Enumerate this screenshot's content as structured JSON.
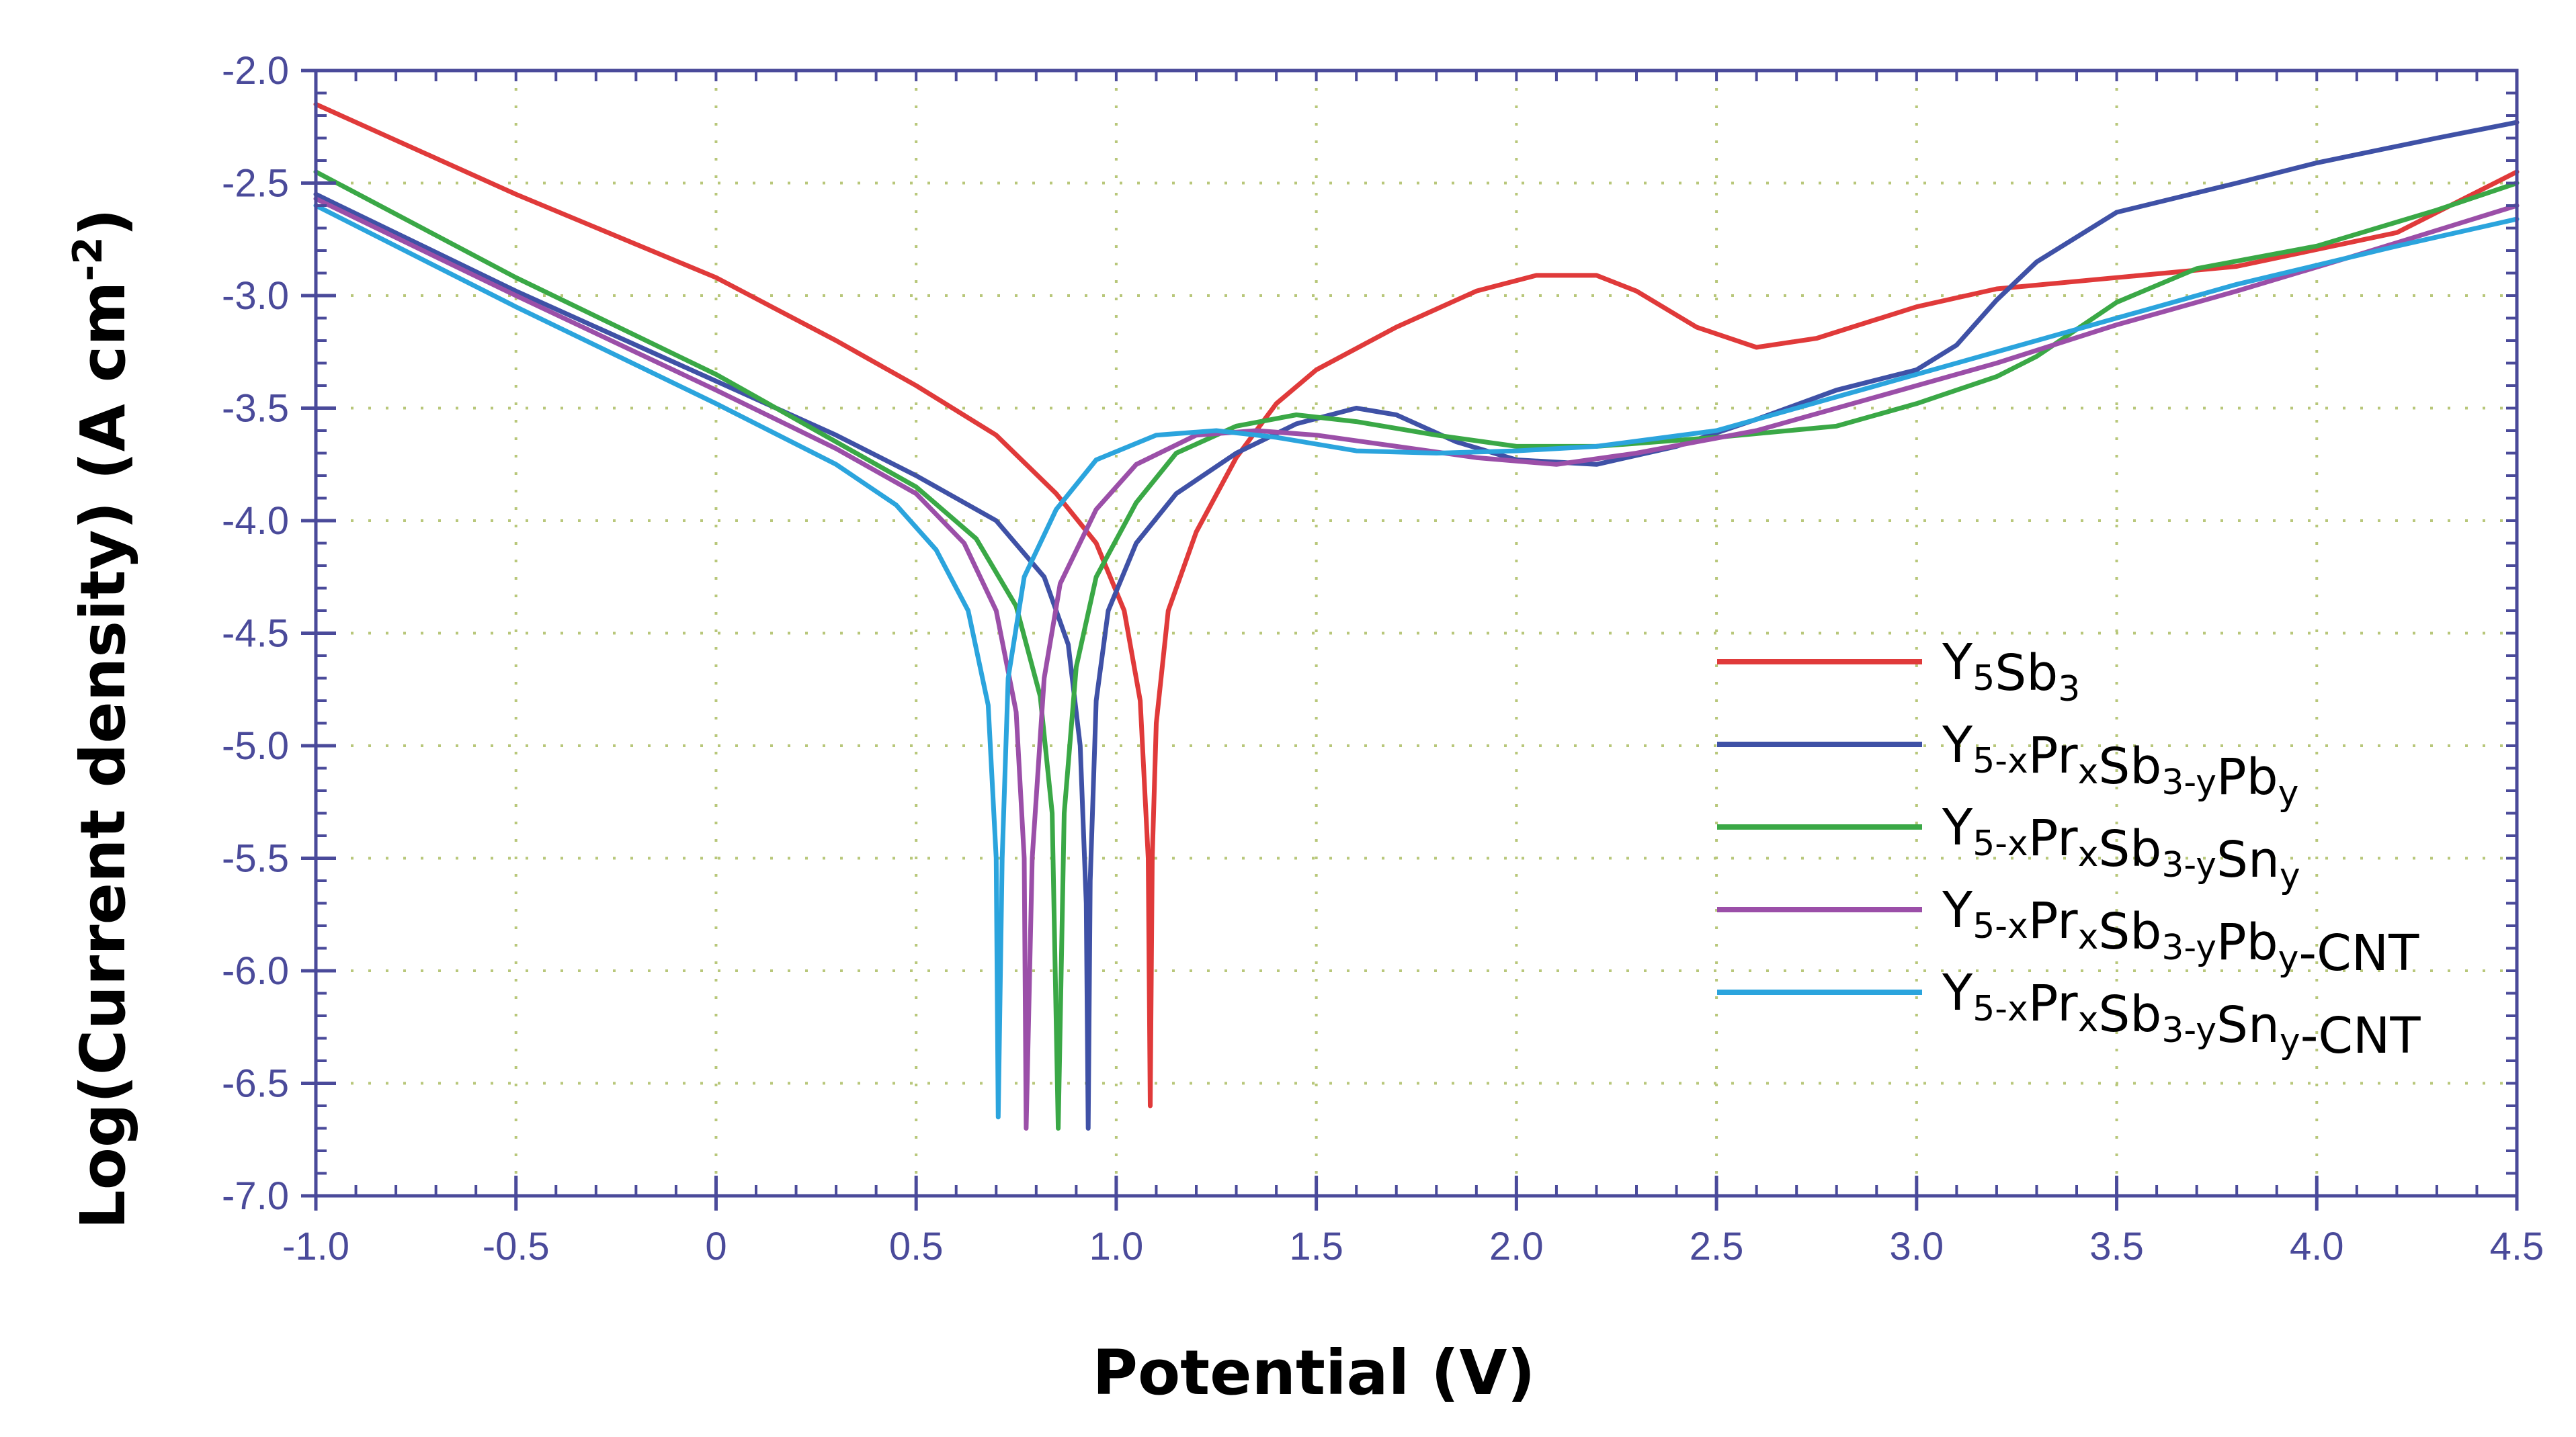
{
  "chart_data": {
    "type": "line",
    "title": "",
    "xlabel": "Potential (V)",
    "ylabel": "Log(Current density) (A cm",
    "ylabel_unit_sup": "-2",
    "ylabel_tail": ")",
    "xlim": [
      -1.0,
      4.5
    ],
    "ylim": [
      -7.0,
      -2.0
    ],
    "x_ticks": [
      -1.0,
      -0.5,
      0,
      0.5,
      1.0,
      1.5,
      2.0,
      2.5,
      3.0,
      3.5,
      4.0,
      4.5
    ],
    "x_tick_labels": [
      "-1.0",
      "-0.5",
      "0",
      "0.5",
      "1.0",
      "1.5",
      "2.0",
      "2.5",
      "3.0",
      "3.5",
      "4.0",
      "4.5"
    ],
    "y_ticks": [
      -2.0,
      -2.5,
      -3.0,
      -3.5,
      -4.0,
      -4.5,
      -5.0,
      -5.5,
      -6.0,
      -6.5,
      -7.0
    ],
    "y_tick_labels": [
      "-2.0",
      "-2.5",
      "-3.0",
      "-3.5",
      "-4.0",
      "-4.5",
      "-5.0",
      "-5.5",
      "-6.0",
      "-6.5",
      "-7.0"
    ],
    "grid": true,
    "legend_position": "center-right",
    "series": [
      {
        "name": "Y5Sb3",
        "legend": [
          {
            "t": "Y"
          },
          {
            "t": "5",
            "s": "sub"
          },
          {
            "t": "Sb"
          },
          {
            "t": "3",
            "s": "sub"
          }
        ],
        "color": "#e03a3a",
        "points": [
          [
            -1.0,
            -2.15
          ],
          [
            -0.5,
            -2.55
          ],
          [
            0.0,
            -2.92
          ],
          [
            0.3,
            -3.2
          ],
          [
            0.5,
            -3.4
          ],
          [
            0.7,
            -3.62
          ],
          [
            0.85,
            -3.88
          ],
          [
            0.95,
            -4.1
          ],
          [
            1.02,
            -4.4
          ],
          [
            1.06,
            -4.8
          ],
          [
            1.08,
            -5.5
          ],
          [
            1.085,
            -6.6
          ],
          [
            1.09,
            -5.5
          ],
          [
            1.1,
            -4.9
          ],
          [
            1.13,
            -4.4
          ],
          [
            1.2,
            -4.05
          ],
          [
            1.3,
            -3.72
          ],
          [
            1.4,
            -3.48
          ],
          [
            1.5,
            -3.33
          ],
          [
            1.7,
            -3.14
          ],
          [
            1.9,
            -2.98
          ],
          [
            2.05,
            -2.91
          ],
          [
            2.2,
            -2.91
          ],
          [
            2.3,
            -2.98
          ],
          [
            2.45,
            -3.14
          ],
          [
            2.6,
            -3.23
          ],
          [
            2.75,
            -3.19
          ],
          [
            3.0,
            -3.05
          ],
          [
            3.2,
            -2.97
          ],
          [
            3.5,
            -2.92
          ],
          [
            3.8,
            -2.87
          ],
          [
            4.2,
            -2.72
          ],
          [
            4.5,
            -2.45
          ]
        ]
      },
      {
        "name": "Y5-xPrxSb3-yPby",
        "legend": [
          {
            "t": "Y"
          },
          {
            "t": "5-x",
            "s": "sub"
          },
          {
            "t": "Pr"
          },
          {
            "t": "x",
            "s": "sub"
          },
          {
            "t": "Sb"
          },
          {
            "t": "3-y",
            "s": "sub"
          },
          {
            "t": "Pb"
          },
          {
            "t": "y",
            "s": "sub"
          }
        ],
        "color": "#3f51a6",
        "points": [
          [
            -1.0,
            -2.55
          ],
          [
            -0.5,
            -2.98
          ],
          [
            0.0,
            -3.38
          ],
          [
            0.3,
            -3.62
          ],
          [
            0.5,
            -3.8
          ],
          [
            0.7,
            -4.0
          ],
          [
            0.82,
            -4.25
          ],
          [
            0.88,
            -4.55
          ],
          [
            0.91,
            -5.0
          ],
          [
            0.925,
            -5.7
          ],
          [
            0.93,
            -6.7
          ],
          [
            0.935,
            -5.6
          ],
          [
            0.95,
            -4.8
          ],
          [
            0.98,
            -4.4
          ],
          [
            1.05,
            -4.1
          ],
          [
            1.15,
            -3.88
          ],
          [
            1.3,
            -3.7
          ],
          [
            1.45,
            -3.57
          ],
          [
            1.6,
            -3.5
          ],
          [
            1.7,
            -3.53
          ],
          [
            1.85,
            -3.65
          ],
          [
            2.0,
            -3.73
          ],
          [
            2.2,
            -3.75
          ],
          [
            2.4,
            -3.67
          ],
          [
            2.6,
            -3.55
          ],
          [
            2.8,
            -3.42
          ],
          [
            3.0,
            -3.33
          ],
          [
            3.1,
            -3.22
          ],
          [
            3.2,
            -3.02
          ],
          [
            3.3,
            -2.85
          ],
          [
            3.5,
            -2.63
          ],
          [
            3.8,
            -2.5
          ],
          [
            4.0,
            -2.41
          ],
          [
            4.3,
            -2.3
          ],
          [
            4.5,
            -2.23
          ]
        ]
      },
      {
        "name": "Y5-xPrxSb3-ySny",
        "legend": [
          {
            "t": "Y"
          },
          {
            "t": "5-x",
            "s": "sub"
          },
          {
            "t": "Pr"
          },
          {
            "t": "x",
            "s": "sub"
          },
          {
            "t": "Sb"
          },
          {
            "t": "3-y",
            "s": "sub"
          },
          {
            "t": "Sn"
          },
          {
            "t": "y",
            "s": "sub"
          }
        ],
        "color": "#3aa846",
        "points": [
          [
            -1.0,
            -2.45
          ],
          [
            -0.5,
            -2.92
          ],
          [
            0.0,
            -3.35
          ],
          [
            0.3,
            -3.65
          ],
          [
            0.5,
            -3.85
          ],
          [
            0.65,
            -4.08
          ],
          [
            0.75,
            -4.38
          ],
          [
            0.81,
            -4.78
          ],
          [
            0.84,
            -5.3
          ],
          [
            0.855,
            -6.7
          ],
          [
            0.87,
            -5.3
          ],
          [
            0.9,
            -4.65
          ],
          [
            0.95,
            -4.25
          ],
          [
            1.05,
            -3.92
          ],
          [
            1.15,
            -3.7
          ],
          [
            1.3,
            -3.58
          ],
          [
            1.45,
            -3.53
          ],
          [
            1.6,
            -3.56
          ],
          [
            1.8,
            -3.62
          ],
          [
            2.0,
            -3.67
          ],
          [
            2.2,
            -3.67
          ],
          [
            2.5,
            -3.63
          ],
          [
            2.8,
            -3.58
          ],
          [
            3.0,
            -3.48
          ],
          [
            3.2,
            -3.36
          ],
          [
            3.3,
            -3.27
          ],
          [
            3.5,
            -3.03
          ],
          [
            3.7,
            -2.88
          ],
          [
            4.0,
            -2.78
          ],
          [
            4.3,
            -2.62
          ],
          [
            4.5,
            -2.5
          ]
        ]
      },
      {
        "name": "Y5-xPrxSb3-yPby-CNT",
        "legend": [
          {
            "t": "Y"
          },
          {
            "t": "5-x",
            "s": "sub"
          },
          {
            "t": "Pr"
          },
          {
            "t": "x",
            "s": "sub"
          },
          {
            "t": "Sb"
          },
          {
            "t": "3-y",
            "s": "sub"
          },
          {
            "t": "Pb"
          },
          {
            "t": "y",
            "s": "sub"
          },
          {
            "t": "-CNT"
          }
        ],
        "color": "#9b4fa8",
        "points": [
          [
            -1.0,
            -2.57
          ],
          [
            -0.5,
            -3.0
          ],
          [
            0.0,
            -3.42
          ],
          [
            0.3,
            -3.68
          ],
          [
            0.5,
            -3.88
          ],
          [
            0.62,
            -4.1
          ],
          [
            0.7,
            -4.4
          ],
          [
            0.75,
            -4.85
          ],
          [
            0.77,
            -5.5
          ],
          [
            0.775,
            -6.7
          ],
          [
            0.79,
            -5.5
          ],
          [
            0.82,
            -4.7
          ],
          [
            0.86,
            -4.28
          ],
          [
            0.95,
            -3.95
          ],
          [
            1.05,
            -3.75
          ],
          [
            1.2,
            -3.62
          ],
          [
            1.35,
            -3.6
          ],
          [
            1.5,
            -3.62
          ],
          [
            1.7,
            -3.67
          ],
          [
            1.9,
            -3.72
          ],
          [
            2.1,
            -3.75
          ],
          [
            2.3,
            -3.7
          ],
          [
            2.6,
            -3.6
          ],
          [
            2.9,
            -3.45
          ],
          [
            3.2,
            -3.3
          ],
          [
            3.5,
            -3.13
          ],
          [
            3.8,
            -2.98
          ],
          [
            4.1,
            -2.82
          ],
          [
            4.5,
            -2.6
          ]
        ]
      },
      {
        "name": "Y5-xPrxSb3-ySny-CNT",
        "legend": [
          {
            "t": "Y"
          },
          {
            "t": "5-x",
            "s": "sub"
          },
          {
            "t": "Pr"
          },
          {
            "t": "x",
            "s": "sub"
          },
          {
            "t": "Sb"
          },
          {
            "t": "3-y",
            "s": "sub"
          },
          {
            "t": "Sn"
          },
          {
            "t": "y",
            "s": "sub"
          },
          {
            "t": "-CNT"
          }
        ],
        "color": "#2ba4dd",
        "points": [
          [
            -1.0,
            -2.6
          ],
          [
            -0.5,
            -3.05
          ],
          [
            0.0,
            -3.48
          ],
          [
            0.3,
            -3.75
          ],
          [
            0.45,
            -3.93
          ],
          [
            0.55,
            -4.13
          ],
          [
            0.63,
            -4.4
          ],
          [
            0.68,
            -4.82
          ],
          [
            0.7,
            -5.5
          ],
          [
            0.705,
            -6.65
          ],
          [
            0.715,
            -5.5
          ],
          [
            0.73,
            -4.7
          ],
          [
            0.77,
            -4.25
          ],
          [
            0.85,
            -3.95
          ],
          [
            0.95,
            -3.73
          ],
          [
            1.1,
            -3.62
          ],
          [
            1.25,
            -3.6
          ],
          [
            1.4,
            -3.63
          ],
          [
            1.6,
            -3.69
          ],
          [
            1.8,
            -3.7
          ],
          [
            2.0,
            -3.69
          ],
          [
            2.2,
            -3.67
          ],
          [
            2.5,
            -3.6
          ],
          [
            2.8,
            -3.45
          ],
          [
            3.1,
            -3.3
          ],
          [
            3.4,
            -3.15
          ],
          [
            3.8,
            -2.95
          ],
          [
            4.2,
            -2.78
          ],
          [
            4.5,
            -2.66
          ]
        ]
      }
    ]
  }
}
